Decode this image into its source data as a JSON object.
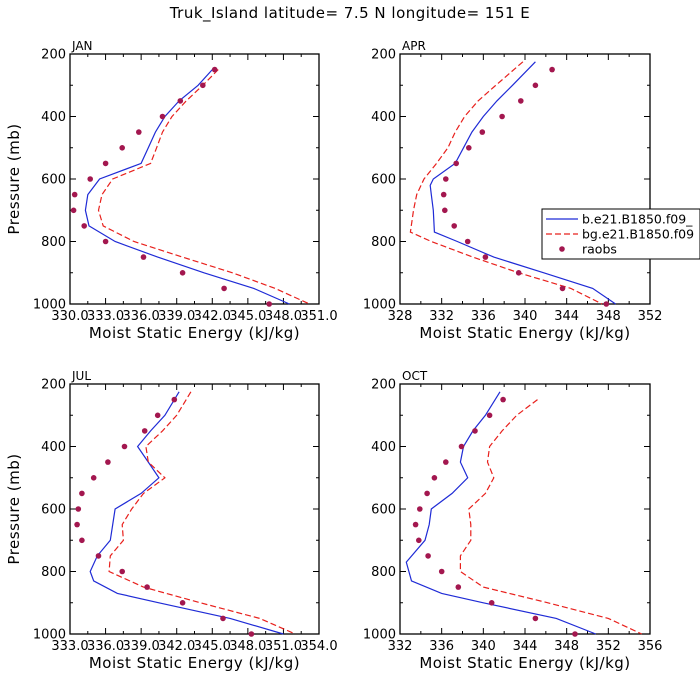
{
  "title": "Truk_Island   latitude= 7.5 N longitude= 151 E",
  "legend": {
    "entries": [
      {
        "label": "b.e21.B1850.f09_",
        "style": "solid",
        "color": "#1f2bd6"
      },
      {
        "label": "bg.e21.B1850.f09",
        "style": "dashed",
        "color": "#e8201c"
      },
      {
        "label": "raobs",
        "style": "dot",
        "color": "#a3174f"
      }
    ]
  },
  "chart_data": [
    {
      "type": "line",
      "panel_label": "JAN",
      "xlabel": "Moist Static Energy (kJ/kg)",
      "ylabel": "Pressure (mb)",
      "xlim": [
        330.0,
        351.0
      ],
      "ylim": [
        200,
        1000
      ],
      "y_inverted": true,
      "xticks": [
        "330.0",
        "333.0",
        "336.0",
        "339.0",
        "342.0",
        "345.0",
        "348.0",
        "351.0"
      ],
      "xtick_values": [
        330.0,
        333.0,
        336.0,
        339.0,
        342.0,
        345.0,
        348.0,
        351.0
      ],
      "yticks": [
        "200",
        "400",
        "600",
        "800",
        "1000"
      ],
      "ytick_values": [
        200,
        400,
        600,
        800,
        1000
      ],
      "series": [
        {
          "name": "b.e21.B1850.f09_",
          "style": "solid",
          "color": "#1f2bd6",
          "pressure": [
            250,
            300,
            350,
            400,
            450,
            500,
            550,
            600,
            650,
            700,
            750,
            800,
            850,
            900,
            950,
            1000
          ],
          "values": [
            342.0,
            340.8,
            339.2,
            338.0,
            337.2,
            336.6,
            336.0,
            332.5,
            331.5,
            331.3,
            331.6,
            333.8,
            337.4,
            341.3,
            345.5,
            348.5
          ]
        },
        {
          "name": "bg.e21.B1850.f09",
          "style": "dashed",
          "color": "#e8201c",
          "pressure": [
            250,
            300,
            350,
            400,
            450,
            500,
            550,
            600,
            650,
            700,
            750,
            800,
            850,
            900,
            950,
            1000
          ],
          "values": [
            342.5,
            341.2,
            339.8,
            338.6,
            337.8,
            337.3,
            336.8,
            333.6,
            332.7,
            332.4,
            332.8,
            335.4,
            339.5,
            343.7,
            347.3,
            350.2
          ]
        }
      ],
      "raobs": {
        "pressure": [
          250,
          300,
          350,
          400,
          450,
          500,
          550,
          600,
          650,
          700,
          750,
          800,
          850,
          900,
          950,
          1000
        ],
        "values": [
          342.2,
          341.2,
          339.3,
          337.8,
          335.8,
          334.4,
          333.0,
          331.7,
          330.4,
          330.3,
          331.2,
          333.0,
          336.2,
          339.5,
          343.0,
          346.8
        ]
      }
    },
    {
      "type": "line",
      "panel_label": "APR",
      "xlabel": "Moist Static Energy (kJ/kg)",
      "ylabel": "",
      "xlim": [
        328,
        352
      ],
      "ylim": [
        200,
        1000
      ],
      "y_inverted": true,
      "xticks": [
        "328",
        "332",
        "336",
        "340",
        "344",
        "348",
        "352"
      ],
      "xtick_values": [
        328,
        332,
        336,
        340,
        344,
        348,
        352
      ],
      "yticks": [
        "200",
        "400",
        "600",
        "800",
        "1000"
      ],
      "ytick_values": [
        200,
        400,
        600,
        800,
        1000
      ],
      "series": [
        {
          "name": "b.e21.B1850.f09_",
          "style": "solid",
          "color": "#1f2bd6",
          "pressure": [
            225,
            300,
            350,
            400,
            450,
            500,
            550,
            600,
            620,
            650,
            700,
            770,
            800,
            850,
            900,
            950,
            1000
          ],
          "values": [
            341.0,
            338.8,
            337.3,
            336.0,
            334.9,
            334.1,
            333.3,
            331.2,
            330.9,
            331.0,
            331.2,
            331.3,
            333.5,
            337.0,
            341.8,
            346.5,
            348.7
          ]
        },
        {
          "name": "bg.e21.B1850.f09",
          "style": "dashed",
          "color": "#e8201c",
          "pressure": [
            225,
            300,
            350,
            400,
            450,
            500,
            550,
            600,
            650,
            700,
            770,
            800,
            850,
            900,
            950,
            1000
          ],
          "values": [
            339.8,
            337.2,
            335.5,
            334.2,
            333.3,
            332.6,
            331.5,
            330.3,
            329.6,
            329.3,
            329.0,
            331.0,
            335.0,
            339.4,
            344.4,
            347.4
          ]
        }
      ],
      "raobs": {
        "pressure": [
          250,
          300,
          350,
          400,
          450,
          500,
          550,
          600,
          650,
          700,
          750,
          800,
          850,
          900,
          950,
          1000
        ],
        "values": [
          342.6,
          341.0,
          339.6,
          337.8,
          335.9,
          334.6,
          333.4,
          332.4,
          332.2,
          332.3,
          333.2,
          334.5,
          336.2,
          339.4,
          343.6,
          347.8
        ]
      }
    },
    {
      "type": "line",
      "panel_label": "JUL",
      "xlabel": "Moist Static Energy (kJ/kg)",
      "ylabel": "Pressure (mb)",
      "xlim": [
        333.0,
        354.0
      ],
      "ylim": [
        200,
        1000
      ],
      "y_inverted": true,
      "xticks": [
        "333.0",
        "336.0",
        "339.0",
        "342.0",
        "345.0",
        "348.0",
        "351.0",
        "354.0"
      ],
      "xtick_values": [
        333.0,
        336.0,
        339.0,
        342.0,
        345.0,
        348.0,
        351.0,
        354.0
      ],
      "yticks": [
        "200",
        "400",
        "600",
        "800",
        "1000"
      ],
      "ytick_values": [
        200,
        400,
        600,
        800,
        1000
      ],
      "series": [
        {
          "name": "b.e21.B1850.f09_",
          "style": "solid",
          "color": "#1f2bd6",
          "pressure": [
            225,
            300,
            350,
            400,
            450,
            500,
            550,
            600,
            650,
            700,
            750,
            800,
            830,
            870,
            900,
            950,
            1000
          ],
          "values": [
            342.2,
            341.0,
            339.8,
            338.7,
            339.6,
            340.5,
            339.0,
            336.8,
            336.6,
            336.4,
            335.3,
            334.7,
            335.0,
            337.0,
            340.5,
            346.5,
            351.0
          ]
        },
        {
          "name": "bg.e21.B1850.f09",
          "style": "dashed",
          "color": "#e8201c",
          "pressure": [
            225,
            300,
            350,
            400,
            450,
            500,
            550,
            600,
            650,
            700,
            750,
            800,
            850,
            900,
            950,
            1000
          ],
          "values": [
            343.2,
            342.0,
            340.8,
            339.4,
            339.6,
            341.0,
            339.2,
            338.2,
            337.4,
            337.5,
            336.4,
            336.3,
            339.2,
            344.0,
            349.0,
            352.0
          ]
        }
      ],
      "raobs": {
        "pressure": [
          250,
          300,
          350,
          400,
          450,
          500,
          550,
          600,
          650,
          700,
          750,
          800,
          850,
          900,
          950,
          1000
        ],
        "values": [
          341.8,
          340.4,
          339.3,
          337.6,
          336.2,
          335.0,
          334.0,
          333.7,
          333.6,
          334.0,
          335.4,
          337.4,
          339.5,
          342.5,
          345.9,
          348.3
        ]
      }
    },
    {
      "type": "line",
      "panel_label": "OCT",
      "xlabel": "Moist Static Energy (kJ/kg)",
      "ylabel": "",
      "xlim": [
        332,
        356
      ],
      "ylim": [
        200,
        1000
      ],
      "y_inverted": true,
      "xticks": [
        "332",
        "336",
        "340",
        "344",
        "348",
        "352",
        "356"
      ],
      "xtick_values": [
        332,
        336,
        340,
        344,
        348,
        352,
        356
      ],
      "yticks": [
        "200",
        "400",
        "600",
        "800",
        "1000"
      ],
      "ytick_values": [
        200,
        400,
        600,
        800,
        1000
      ],
      "series": [
        {
          "name": "b.e21.B1850.f09_",
          "style": "solid",
          "color": "#1f2bd6",
          "pressure": [
            225,
            300,
            350,
            400,
            450,
            500,
            550,
            600,
            650,
            700,
            770,
            830,
            870,
            900,
            950,
            1000
          ],
          "values": [
            341.6,
            340.2,
            339.0,
            338.1,
            337.8,
            338.5,
            337.0,
            335.0,
            334.8,
            334.4,
            332.6,
            333.1,
            336.0,
            340.0,
            347.0,
            350.8
          ]
        },
        {
          "name": "bg.e21.B1850.f09",
          "style": "dashed",
          "color": "#e8201c",
          "pressure": [
            250,
            300,
            350,
            400,
            450,
            500,
            550,
            600,
            650,
            700,
            750,
            800,
            850,
            900,
            950,
            1000
          ],
          "values": [
            345.2,
            343.2,
            341.8,
            340.6,
            340.4,
            341.0,
            340.2,
            338.6,
            338.8,
            338.8,
            337.8,
            337.8,
            340.0,
            346.2,
            352.0,
            355.2
          ]
        }
      ],
      "raobs": {
        "pressure": [
          250,
          300,
          350,
          400,
          450,
          500,
          550,
          600,
          650,
          700,
          750,
          800,
          850,
          900,
          950,
          1000
        ],
        "values": [
          341.9,
          340.6,
          339.2,
          337.9,
          336.4,
          335.3,
          334.6,
          333.9,
          333.5,
          333.8,
          334.7,
          336.0,
          337.6,
          340.8,
          345.0,
          348.8
        ]
      }
    }
  ]
}
